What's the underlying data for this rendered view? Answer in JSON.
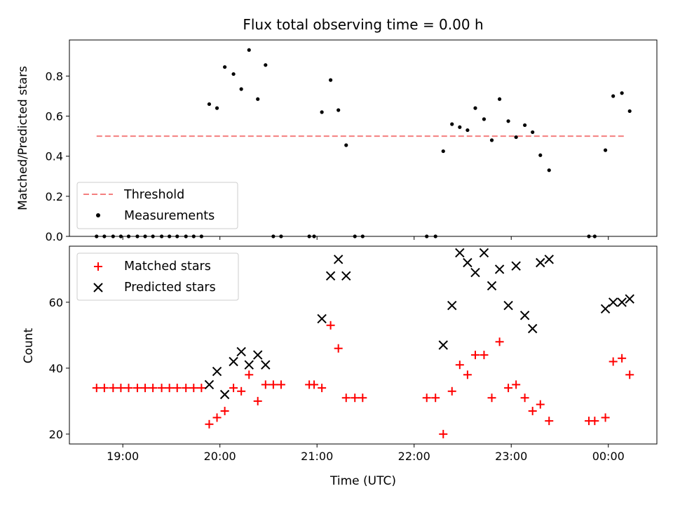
{
  "chart_data": [
    {
      "type": "scatter",
      "title": "Flux total observing time = 0.00 h",
      "xlabel": "",
      "ylabel": "Matched/Predicted stars",
      "xlim": [
        18.45,
        24.5
      ],
      "ylim": [
        0.0,
        0.98
      ],
      "xticks": [
        19,
        20,
        21,
        22,
        23,
        24
      ],
      "yticks": [
        0.0,
        0.2,
        0.4,
        0.6,
        0.8
      ],
      "ytick_labels": [
        "0.0",
        "0.2",
        "0.4",
        "0.6",
        "0.8"
      ],
      "grid": false,
      "legend": {
        "position": "lower-left"
      },
      "threshold": {
        "name": "Threshold",
        "y": 0.5,
        "x": [
          18.73,
          24.18
        ],
        "color": "#f47f7f",
        "style": "dashed"
      },
      "series": [
        {
          "name": "Measurements",
          "marker": "dot",
          "color": "#000000",
          "points": [
            [
              18.73,
              0
            ],
            [
              18.81,
              0
            ],
            [
              18.9,
              0
            ],
            [
              18.98,
              0
            ],
            [
              19.06,
              0
            ],
            [
              19.15,
              0
            ],
            [
              19.23,
              0
            ],
            [
              19.31,
              0
            ],
            [
              19.4,
              0
            ],
            [
              19.48,
              0
            ],
            [
              19.56,
              0
            ],
            [
              19.65,
              0
            ],
            [
              19.73,
              0
            ],
            [
              19.81,
              0
            ],
            [
              19.89,
              0.66
            ],
            [
              19.97,
              0.64
            ],
            [
              20.05,
              0.845
            ],
            [
              20.14,
              0.81
            ],
            [
              20.22,
              0.735
            ],
            [
              20.3,
              0.93
            ],
            [
              20.39,
              0.685
            ],
            [
              20.47,
              0.855
            ],
            [
              20.55,
              0
            ],
            [
              20.63,
              0
            ],
            [
              20.92,
              0
            ],
            [
              20.97,
              0
            ],
            [
              21.05,
              0.62
            ],
            [
              21.14,
              0.78
            ],
            [
              21.22,
              0.63
            ],
            [
              21.3,
              0.455
            ],
            [
              21.39,
              0
            ],
            [
              21.47,
              0
            ],
            [
              22.13,
              0
            ],
            [
              22.22,
              0
            ],
            [
              22.3,
              0.425
            ],
            [
              22.39,
              0.56
            ],
            [
              22.47,
              0.545
            ],
            [
              22.55,
              0.53
            ],
            [
              22.63,
              0.64
            ],
            [
              22.72,
              0.585
            ],
            [
              22.8,
              0.48
            ],
            [
              22.88,
              0.685
            ],
            [
              22.97,
              0.575
            ],
            [
              23.05,
              0.495
            ],
            [
              23.14,
              0.555
            ],
            [
              23.22,
              0.52
            ],
            [
              23.3,
              0.405
            ],
            [
              23.39,
              0.33
            ],
            [
              23.8,
              0
            ],
            [
              23.86,
              0
            ],
            [
              23.97,
              0.43
            ],
            [
              24.05,
              0.7
            ],
            [
              24.14,
              0.715
            ],
            [
              24.22,
              0.625
            ]
          ]
        }
      ]
    },
    {
      "type": "scatter",
      "title": "",
      "xlabel": "Time (UTC)",
      "ylabel": "Count",
      "xlim": [
        18.45,
        24.5
      ],
      "ylim": [
        17,
        77
      ],
      "xticks": [
        19,
        20,
        21,
        22,
        23,
        24
      ],
      "xtick_labels": [
        "19:00",
        "20:00",
        "21:00",
        "22:00",
        "23:00",
        "00:00"
      ],
      "yticks": [
        20,
        40,
        60
      ],
      "ytick_labels": [
        "20",
        "40",
        "60"
      ],
      "grid": false,
      "legend": {
        "position": "upper-left"
      },
      "series": [
        {
          "name": "Matched stars",
          "marker": "plus",
          "color": "#ff0000",
          "points": [
            [
              18.73,
              34
            ],
            [
              18.81,
              34
            ],
            [
              18.9,
              34
            ],
            [
              18.98,
              34
            ],
            [
              19.06,
              34
            ],
            [
              19.15,
              34
            ],
            [
              19.23,
              34
            ],
            [
              19.31,
              34
            ],
            [
              19.4,
              34
            ],
            [
              19.48,
              34
            ],
            [
              19.56,
              34
            ],
            [
              19.65,
              34
            ],
            [
              19.73,
              34
            ],
            [
              19.81,
              34
            ],
            [
              19.89,
              23
            ],
            [
              19.97,
              25
            ],
            [
              20.05,
              27
            ],
            [
              20.14,
              34
            ],
            [
              20.22,
              33
            ],
            [
              20.3,
              38
            ],
            [
              20.39,
              30
            ],
            [
              20.47,
              35
            ],
            [
              20.55,
              35
            ],
            [
              20.63,
              35
            ],
            [
              20.92,
              35
            ],
            [
              20.97,
              35
            ],
            [
              21.05,
              34
            ],
            [
              21.14,
              53
            ],
            [
              21.22,
              46
            ],
            [
              21.3,
              31
            ],
            [
              21.39,
              31
            ],
            [
              21.47,
              31
            ],
            [
              22.13,
              31
            ],
            [
              22.22,
              31
            ],
            [
              22.3,
              20
            ],
            [
              22.39,
              33
            ],
            [
              22.47,
              41
            ],
            [
              22.55,
              38
            ],
            [
              22.63,
              44
            ],
            [
              22.72,
              44
            ],
            [
              22.8,
              31
            ],
            [
              22.88,
              48
            ],
            [
              22.97,
              34
            ],
            [
              23.05,
              35
            ],
            [
              23.14,
              31
            ],
            [
              23.22,
              27
            ],
            [
              23.3,
              29
            ],
            [
              23.39,
              24
            ],
            [
              23.8,
              24
            ],
            [
              23.86,
              24
            ],
            [
              23.97,
              25
            ],
            [
              24.05,
              42
            ],
            [
              24.14,
              43
            ],
            [
              24.22,
              38
            ]
          ]
        },
        {
          "name": "Predicted stars",
          "marker": "x",
          "color": "#000000",
          "points": [
            [
              19.89,
              35
            ],
            [
              19.97,
              39
            ],
            [
              20.05,
              32
            ],
            [
              20.14,
              42
            ],
            [
              20.22,
              45
            ],
            [
              20.3,
              41
            ],
            [
              20.39,
              44
            ],
            [
              20.47,
              41
            ],
            [
              21.05,
              55
            ],
            [
              21.14,
              68
            ],
            [
              21.22,
              73
            ],
            [
              21.3,
              68
            ],
            [
              22.3,
              47
            ],
            [
              22.39,
              59
            ],
            [
              22.47,
              75
            ],
            [
              22.55,
              72
            ],
            [
              22.63,
              69
            ],
            [
              22.72,
              75
            ],
            [
              22.8,
              65
            ],
            [
              22.88,
              70
            ],
            [
              22.97,
              59
            ],
            [
              23.05,
              71
            ],
            [
              23.14,
              56
            ],
            [
              23.22,
              52
            ],
            [
              23.3,
              72
            ],
            [
              23.39,
              73
            ],
            [
              23.97,
              58
            ],
            [
              24.05,
              60
            ],
            [
              24.14,
              60
            ],
            [
              24.22,
              61
            ]
          ]
        }
      ]
    }
  ]
}
